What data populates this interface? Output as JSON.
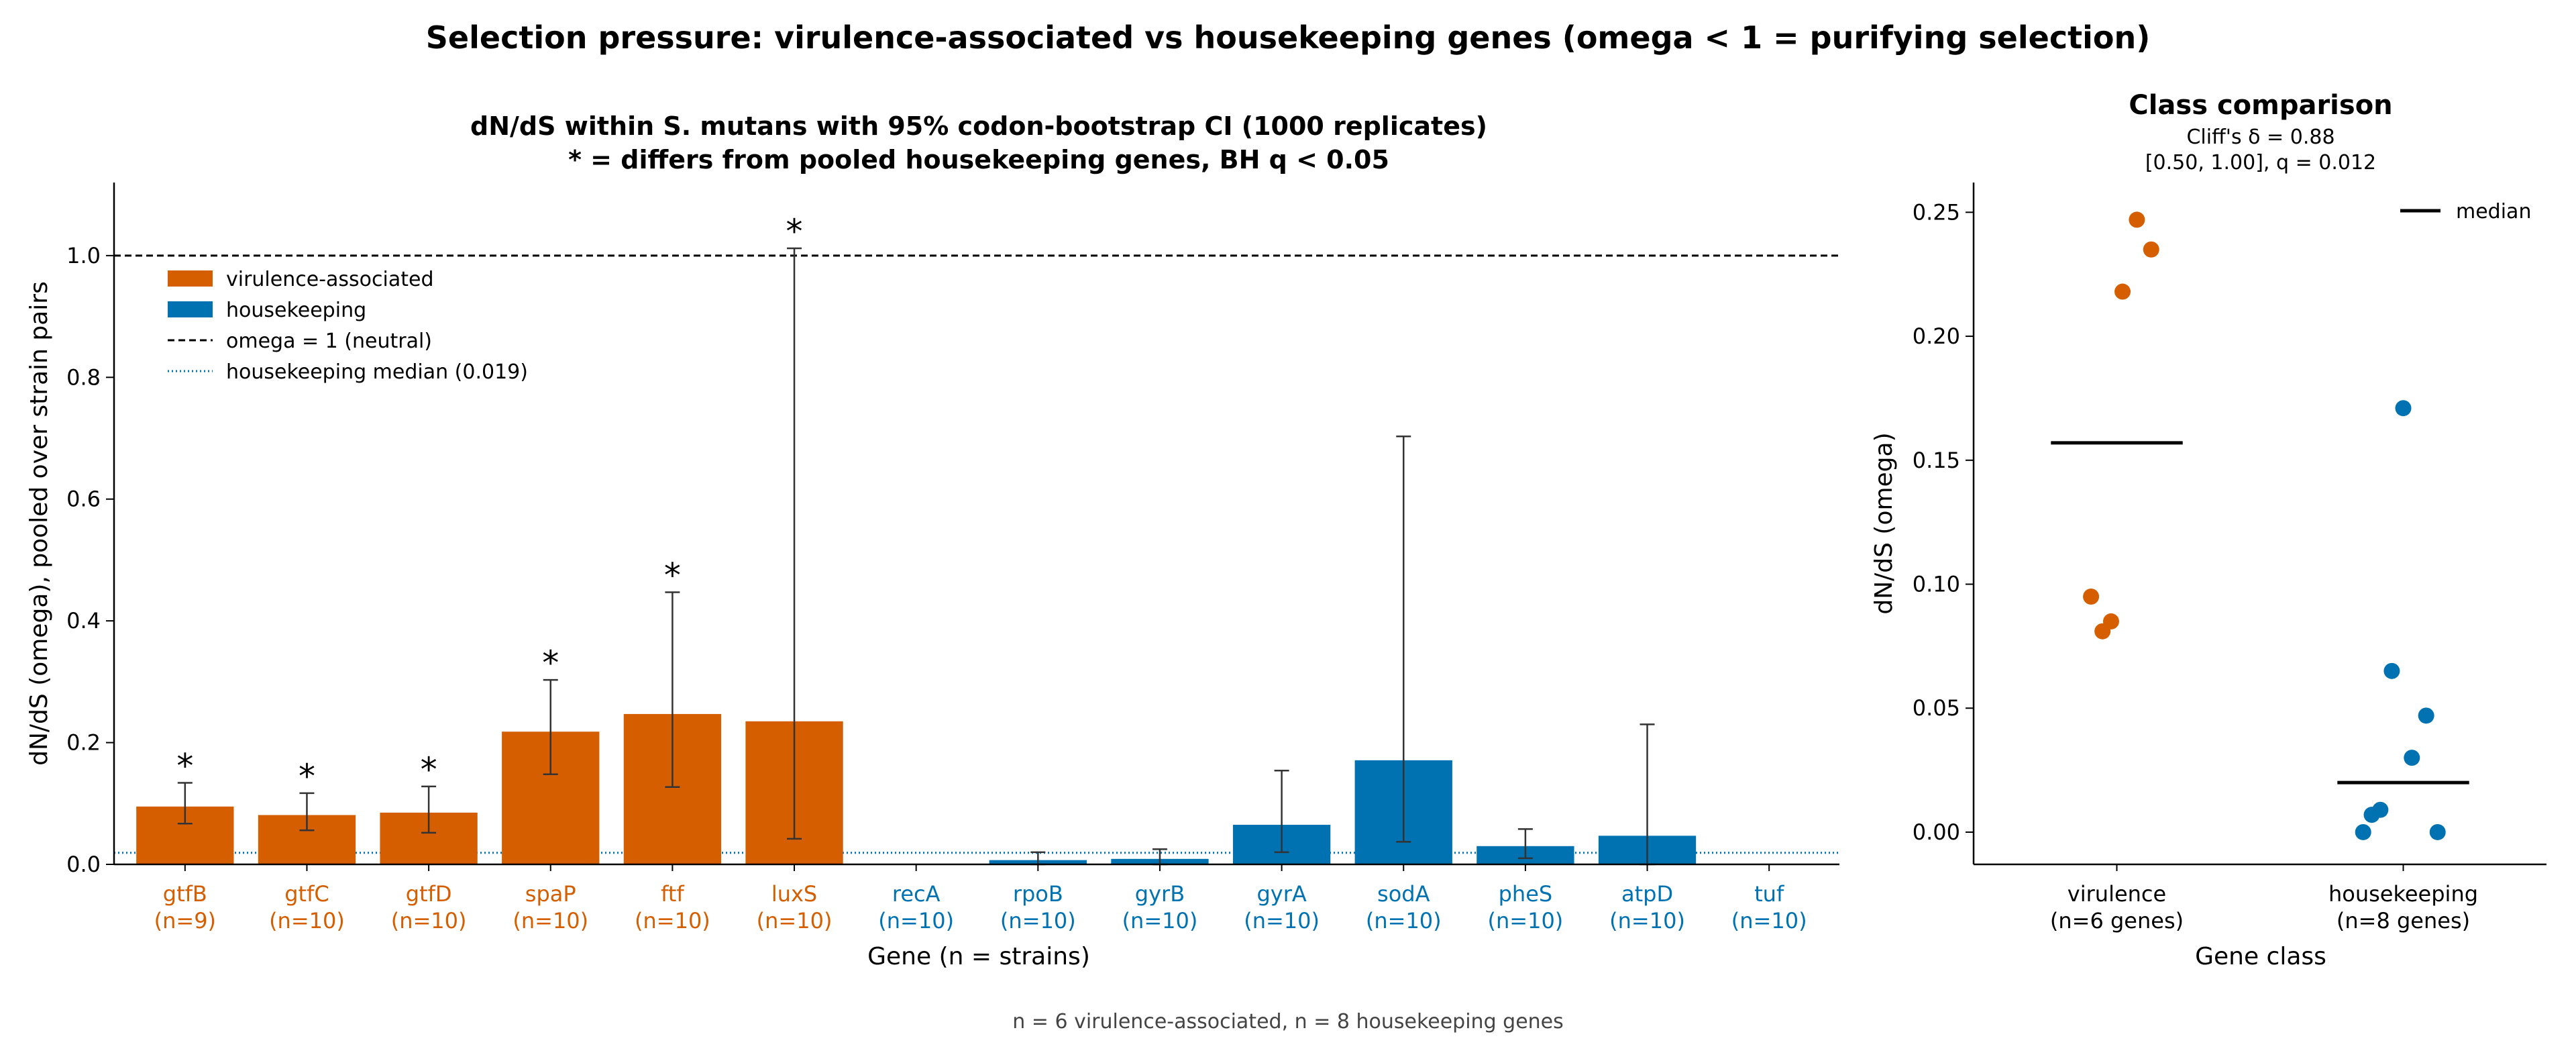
{
  "suptitle": "Selection pressure: virulence-associated vs housekeeping genes (omega < 1 = purifying selection)",
  "footnote": "n = 6 virulence-associated, n = 8 housekeeping genes",
  "colors": {
    "virulence": "#d55e00",
    "housekeeping": "#0072b2",
    "neutral_line": "#000000",
    "hk_median_line": "#0072b2",
    "error_bar": "#333333"
  },
  "chart_data": [
    {
      "type": "bar",
      "title": "dN/dS within S. mutans with 95% codon-bootstrap CI (1000 replicates)",
      "subtitle": "* = differs from pooled housekeeping genes, BH q < 0.05",
      "xlabel": "Gene (n = strains)",
      "ylabel": "dN/dS (omega), pooled over strain pairs",
      "ylim": [
        0,
        1.12
      ],
      "yticks": [
        "0.0",
        "0.2",
        "0.4",
        "0.6",
        "0.8",
        "1.0"
      ],
      "grid": false,
      "legend_position": "top-left",
      "legend": [
        {
          "label": "virulence-associated",
          "kind": "patch",
          "class": "virulence"
        },
        {
          "label": "housekeeping",
          "kind": "patch",
          "class": "housekeeping"
        },
        {
          "label": "omega = 1 (neutral)",
          "kind": "dashed"
        },
        {
          "label": "housekeeping median (0.019)",
          "kind": "dotted"
        }
      ],
      "reference_lines": [
        {
          "y": 1.0,
          "style": "dashed",
          "label": "omega = 1 (neutral)"
        },
        {
          "y": 0.019,
          "style": "dotted",
          "label": "housekeeping median (0.019)"
        }
      ],
      "bars": [
        {
          "gene": "gtfB",
          "n": "(n=9)",
          "class": "virulence",
          "value": 0.095,
          "ci": [
            0.067,
            0.134
          ],
          "sig": "*"
        },
        {
          "gene": "gtfC",
          "n": "(n=10)",
          "class": "virulence",
          "value": 0.081,
          "ci": [
            0.056,
            0.117
          ],
          "sig": "*"
        },
        {
          "gene": "gtfD",
          "n": "(n=10)",
          "class": "virulence",
          "value": 0.085,
          "ci": [
            0.052,
            0.128
          ],
          "sig": "*"
        },
        {
          "gene": "spaP",
          "n": "(n=10)",
          "class": "virulence",
          "value": 0.218,
          "ci": [
            0.148,
            0.303
          ],
          "sig": "*"
        },
        {
          "gene": "ftf",
          "n": "(n=10)",
          "class": "virulence",
          "value": 0.247,
          "ci": [
            0.127,
            0.447
          ],
          "sig": "*"
        },
        {
          "gene": "luxS",
          "n": "(n=10)",
          "class": "virulence",
          "value": 0.235,
          "ci": [
            0.042,
            1.012
          ],
          "sig": "*"
        },
        {
          "gene": "recA",
          "n": "(n=10)",
          "class": "housekeeping",
          "value": 0.0,
          "ci": null,
          "sig": ""
        },
        {
          "gene": "rpoB",
          "n": "(n=10)",
          "class": "housekeeping",
          "value": 0.007,
          "ci": [
            0.0,
            0.02
          ],
          "sig": ""
        },
        {
          "gene": "gyrB",
          "n": "(n=10)",
          "class": "housekeeping",
          "value": 0.009,
          "ci": [
            0.0,
            0.025
          ],
          "sig": ""
        },
        {
          "gene": "gyrA",
          "n": "(n=10)",
          "class": "housekeeping",
          "value": 0.065,
          "ci": [
            0.02,
            0.154
          ],
          "sig": ""
        },
        {
          "gene": "sodA",
          "n": "(n=10)",
          "class": "housekeeping",
          "value": 0.171,
          "ci": [
            0.037,
            0.703
          ],
          "sig": ""
        },
        {
          "gene": "pheS",
          "n": "(n=10)",
          "class": "housekeeping",
          "value": 0.03,
          "ci": [
            0.01,
            0.058
          ],
          "sig": ""
        },
        {
          "gene": "atpD",
          "n": "(n=10)",
          "class": "housekeeping",
          "value": 0.047,
          "ci": [
            0.0,
            0.23
          ],
          "sig": ""
        },
        {
          "gene": "tuf",
          "n": "(n=10)",
          "class": "housekeeping",
          "value": 0.0,
          "ci": null,
          "sig": ""
        }
      ]
    },
    {
      "type": "scatter",
      "title": "Class comparison",
      "subtitle_lines": [
        "Cliff's δ = 0.88",
        "[0.50, 1.00], q = 0.012"
      ],
      "xlabel": "Gene class",
      "ylabel": "dN/dS (omega)",
      "ylim": [
        -0.013,
        0.262
      ],
      "yticks": [
        "0.00",
        "0.05",
        "0.10",
        "0.15",
        "0.20",
        "0.25"
      ],
      "grid": false,
      "legend_position": "top-right",
      "legend": [
        {
          "label": "median",
          "kind": "solid"
        }
      ],
      "groups": [
        {
          "name": "virulence",
          "label_lines": [
            "virulence",
            "(n=6 genes)"
          ],
          "class": "virulence",
          "median": 0.157,
          "points": [
            {
              "x": 0.91,
              "y": 0.095
            },
            {
              "x": 0.95,
              "y": 0.081
            },
            {
              "x": 0.98,
              "y": 0.085
            },
            {
              "x": 1.02,
              "y": 0.218
            },
            {
              "x": 1.07,
              "y": 0.247
            },
            {
              "x": 1.12,
              "y": 0.235
            }
          ]
        },
        {
          "name": "housekeeping",
          "label_lines": [
            "housekeeping",
            "(n=8 genes)"
          ],
          "class": "housekeeping",
          "median": 0.02,
          "points": [
            {
              "x": 1.86,
              "y": 0.0
            },
            {
              "x": 1.89,
              "y": 0.007
            },
            {
              "x": 1.92,
              "y": 0.009
            },
            {
              "x": 1.96,
              "y": 0.065
            },
            {
              "x": 2.0,
              "y": 0.171
            },
            {
              "x": 2.03,
              "y": 0.03
            },
            {
              "x": 2.08,
              "y": 0.047
            },
            {
              "x": 2.12,
              "y": 0.0
            }
          ]
        }
      ]
    }
  ]
}
